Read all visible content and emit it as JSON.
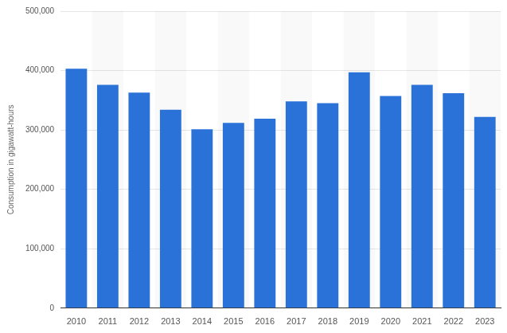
{
  "chart_data": {
    "type": "bar",
    "y_label": "Consumption in gigawatt-hours",
    "categories": [
      "2010",
      "2011",
      "2012",
      "2013",
      "2014",
      "2015",
      "2016",
      "2017",
      "2018",
      "2019",
      "2020",
      "2021",
      "2022",
      "2023"
    ],
    "values": [
      403000,
      376000,
      363000,
      334000,
      301000,
      312000,
      319000,
      348000,
      345000,
      397000,
      357000,
      376000,
      362000,
      322000
    ],
    "color": "#2a72d8",
    "ylim": [
      0,
      500000
    ],
    "yticks": [
      0,
      {
        "value": 100000,
        "label": "100,000"
      },
      {
        "value": 200000,
        "label": "200,000"
      },
      {
        "value": 300000,
        "label": "300,000"
      },
      {
        "value": 400000,
        "label": "400,000"
      },
      {
        "value": 500000,
        "label": "500,000"
      }
    ],
    "grid": true
  }
}
